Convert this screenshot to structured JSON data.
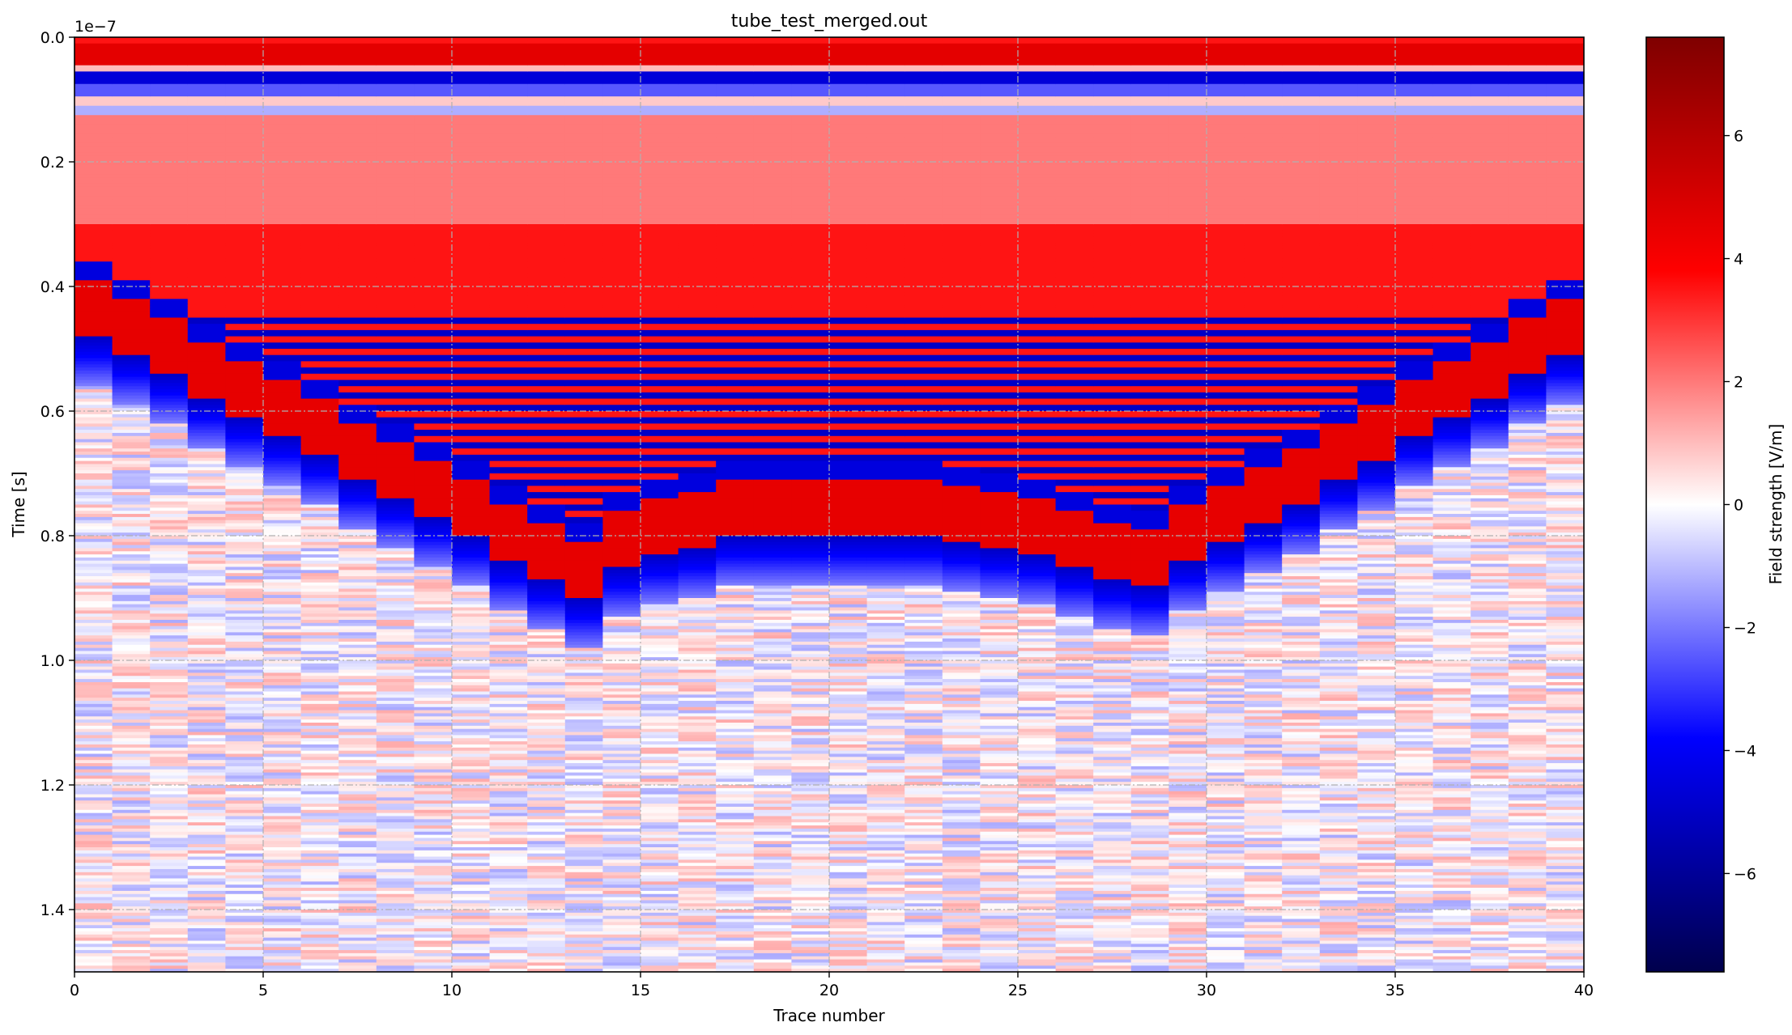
{
  "chart_data": {
    "type": "heatmap",
    "title": "tube_test_merged.out",
    "xlabel": "Trace number",
    "ylabel": "Time [s]",
    "y_offset_text": "1e−7",
    "xlim": [
      0,
      40
    ],
    "ylim": [
      1.5,
      0.0
    ],
    "y_inverted": true,
    "grid": true,
    "x_ticks": [
      0,
      5,
      10,
      15,
      20,
      25,
      30,
      35,
      40
    ],
    "x_tick_labels": [
      "0",
      "5",
      "10",
      "15",
      "20",
      "25",
      "30",
      "35",
      "40"
    ],
    "y_ticks": [
      0.0,
      0.2,
      0.4,
      0.6,
      0.8,
      1.0,
      1.2,
      1.4
    ],
    "y_tick_labels": [
      "0.0",
      "0.2",
      "0.4",
      "0.6",
      "0.8",
      "1.0",
      "1.2",
      "1.4"
    ],
    "n_traces": 40,
    "colormap": "seismic",
    "colormap_stops": [
      "#00004c",
      "#0000ff",
      "#ffffff",
      "#ff0000",
      "#7f0000"
    ],
    "colorbar": {
      "label": "Field strength [V/m]",
      "vmin": -7.6,
      "vmax": 7.6,
      "ticks": [
        -6,
        -4,
        -2,
        0,
        2,
        4,
        6
      ],
      "tick_labels": [
        "−6",
        "−4",
        "−2",
        "0",
        "2",
        "4",
        "6"
      ]
    },
    "direct_wave": [
      {
        "t0": 0.0,
        "t1": 0.01,
        "value": 3.5
      },
      {
        "t0": 0.01,
        "t1": 0.045,
        "value": 4.6
      },
      {
        "t0": 0.045,
        "t1": 0.05,
        "value": 1.0
      },
      {
        "t0": 0.05,
        "t1": 0.075,
        "value": -4.6
      },
      {
        "t0": 0.075,
        "t1": 0.095,
        "value": -2.5
      },
      {
        "t0": 0.095,
        "t1": 0.11,
        "value": 0.8
      },
      {
        "t0": 0.11,
        "t1": 0.125,
        "value": -1.2
      },
      {
        "t0": 0.125,
        "t1": 0.3,
        "value": 2.0
      },
      {
        "t0": 0.3,
        "t1": 0.5,
        "value": 3.5
      }
    ],
    "reflection_arrival_times": [
      0.36,
      0.39,
      0.42,
      0.46,
      0.49,
      0.52,
      0.55,
      0.59,
      0.62,
      0.65,
      0.68,
      0.72,
      0.75,
      0.78,
      0.73,
      0.71,
      0.7,
      0.68,
      0.68,
      0.68,
      0.68,
      0.68,
      0.68,
      0.69,
      0.7,
      0.71,
      0.73,
      0.75,
      0.76,
      0.72,
      0.69,
      0.66,
      0.63,
      0.59,
      0.56,
      0.52,
      0.49,
      0.46,
      0.42,
      0.39
    ]
  }
}
